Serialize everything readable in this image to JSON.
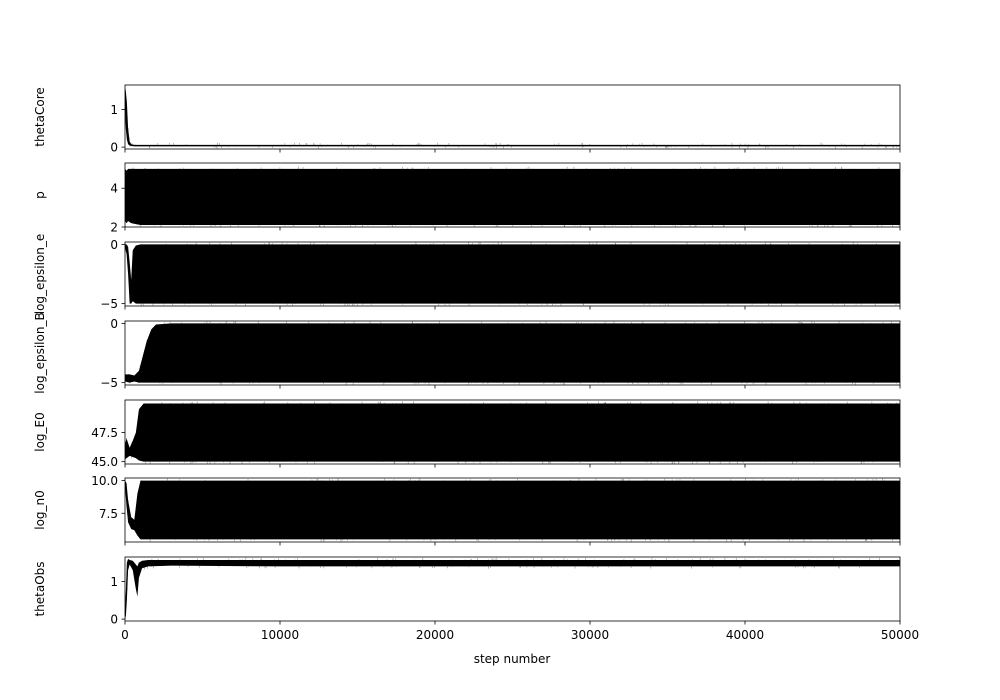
{
  "chart_data": {
    "type": "line",
    "title": "",
    "xlabel": "step number",
    "xlim": [
      0,
      50000
    ],
    "x_ticks": [
      0,
      10000,
      20000,
      30000,
      40000,
      50000
    ],
    "x_tick_labels": [
      "0",
      "10000",
      "20000",
      "30000",
      "40000",
      "50000"
    ],
    "line_color": "#000000",
    "grid": false,
    "legend": "none",
    "panels": [
      {
        "ylabel": "thetaCore",
        "ylim": [
          -0.05,
          1.65
        ],
        "y_ticks": [
          0,
          1
        ],
        "y_tick_labels": [
          "0",
          "1"
        ],
        "series": {
          "x": [
            0,
            50,
            120,
            200,
            300,
            400,
            600,
            1000,
            5000,
            20000,
            35000,
            50000
          ],
          "lo": [
            1.0,
            0.5,
            0.2,
            0.08,
            0.04,
            0.03,
            0.02,
            0.02,
            0.02,
            0.02,
            0.02,
            0.02
          ],
          "hi": [
            1.58,
            1.5,
            1.2,
            0.5,
            0.15,
            0.08,
            0.06,
            0.06,
            0.06,
            0.06,
            0.06,
            0.06
          ]
        }
      },
      {
        "ylabel": "p",
        "ylim": [
          2.0,
          5.3
        ],
        "y_ticks": [
          2,
          4
        ],
        "y_tick_labels": [
          "2",
          "4"
        ],
        "series": {
          "x": [
            0,
            100,
            200,
            400,
            700,
            1000,
            5000,
            20000,
            35000,
            50000
          ],
          "lo": [
            2.3,
            2.2,
            2.3,
            2.2,
            2.15,
            2.1,
            2.1,
            2.1,
            2.1,
            2.1
          ],
          "hi": [
            5.0,
            4.9,
            5.0,
            5.0,
            5.0,
            5.0,
            5.0,
            5.0,
            5.0,
            5.0
          ]
        }
      },
      {
        "ylabel": "log_epsilon_e",
        "ylim": [
          -5.2,
          0.2
        ],
        "y_ticks": [
          -5,
          0
        ],
        "y_tick_labels": [
          "−5",
          "0"
        ],
        "series": {
          "x": [
            0,
            100,
            200,
            300,
            400,
            500,
            700,
            1000,
            2000,
            10000,
            30000,
            50000
          ],
          "lo": [
            -0.3,
            -0.8,
            -2.5,
            -5.0,
            -5.0,
            -4.8,
            -5.0,
            -5.0,
            -5.0,
            -5.0,
            -5.0,
            -5.0
          ],
          "hi": [
            0.0,
            0.0,
            -0.2,
            -1.5,
            -3.0,
            -0.5,
            -0.1,
            0.0,
            0.0,
            0.0,
            0.0,
            0.0
          ]
        }
      },
      {
        "ylabel": "log_epsilon_B",
        "ylim": [
          -5.2,
          0.2
        ],
        "y_ticks": [
          -5,
          0
        ],
        "y_tick_labels": [
          "−5",
          "0"
        ],
        "series": {
          "x": [
            0,
            300,
            600,
            900,
            1100,
            1400,
            1700,
            2000,
            3000,
            10000,
            30000,
            50000
          ],
          "lo": [
            -4.9,
            -5.0,
            -4.9,
            -5.0,
            -5.0,
            -5.0,
            -5.0,
            -5.0,
            -5.0,
            -5.0,
            -5.0,
            -5.0
          ],
          "hi": [
            -4.3,
            -4.3,
            -4.4,
            -4.0,
            -3.0,
            -1.5,
            -0.5,
            -0.1,
            0.0,
            0.0,
            0.0,
            0.0
          ]
        }
      },
      {
        "ylabel": "log_E0",
        "ylim": [
          44.8,
          50.3
        ],
        "y_ticks": [
          45.0,
          47.5
        ],
        "y_tick_labels": [
          "45.0",
          "47.5"
        ],
        "series": {
          "x": [
            0,
            100,
            300,
            500,
            700,
            900,
            1200,
            2000,
            10000,
            30000,
            50000
          ],
          "lo": [
            45.2,
            45.3,
            45.5,
            45.4,
            45.3,
            45.1,
            45.0,
            45.0,
            45.0,
            45.0,
            45.0
          ],
          "hi": [
            46.5,
            47.0,
            46.2,
            46.8,
            47.5,
            49.5,
            50.0,
            50.0,
            50.0,
            50.0,
            50.0
          ]
        }
      },
      {
        "ylabel": "log_n0",
        "ylim": [
          5.3,
          10.2
        ],
        "y_ticks": [
          7.5,
          10.0
        ],
        "y_tick_labels": [
          "7.5",
          "10.0"
        ],
        "series": {
          "x": [
            0,
            100,
            200,
            400,
            600,
            800,
            1000,
            2000,
            10000,
            30000,
            50000
          ],
          "lo": [
            9.5,
            8.0,
            6.8,
            6.3,
            6.2,
            5.8,
            5.5,
            5.5,
            5.5,
            5.5,
            5.5
          ],
          "hi": [
            10.0,
            9.8,
            8.5,
            7.2,
            7.0,
            9.0,
            10.0,
            10.0,
            10.0,
            10.0,
            10.0
          ]
        }
      },
      {
        "ylabel": "thetaObs",
        "ylim": [
          -0.05,
          1.65
        ],
        "y_ticks": [
          0,
          1
        ],
        "y_tick_labels": [
          "0",
          "1"
        ],
        "series": {
          "x": [
            0,
            60,
            120,
            200,
            300,
            500,
            700,
            800,
            900,
            1100,
            1500,
            3000,
            10000,
            30000,
            50000
          ],
          "lo": [
            0.0,
            0.1,
            0.5,
            1.3,
            1.45,
            1.3,
            0.8,
            0.6,
            1.1,
            1.35,
            1.4,
            1.42,
            1.4,
            1.4,
            1.4
          ],
          "hi": [
            0.3,
            0.8,
            1.5,
            1.6,
            1.57,
            1.55,
            1.45,
            1.4,
            1.5,
            1.55,
            1.57,
            1.57,
            1.57,
            1.57,
            1.57
          ]
        }
      }
    ]
  }
}
